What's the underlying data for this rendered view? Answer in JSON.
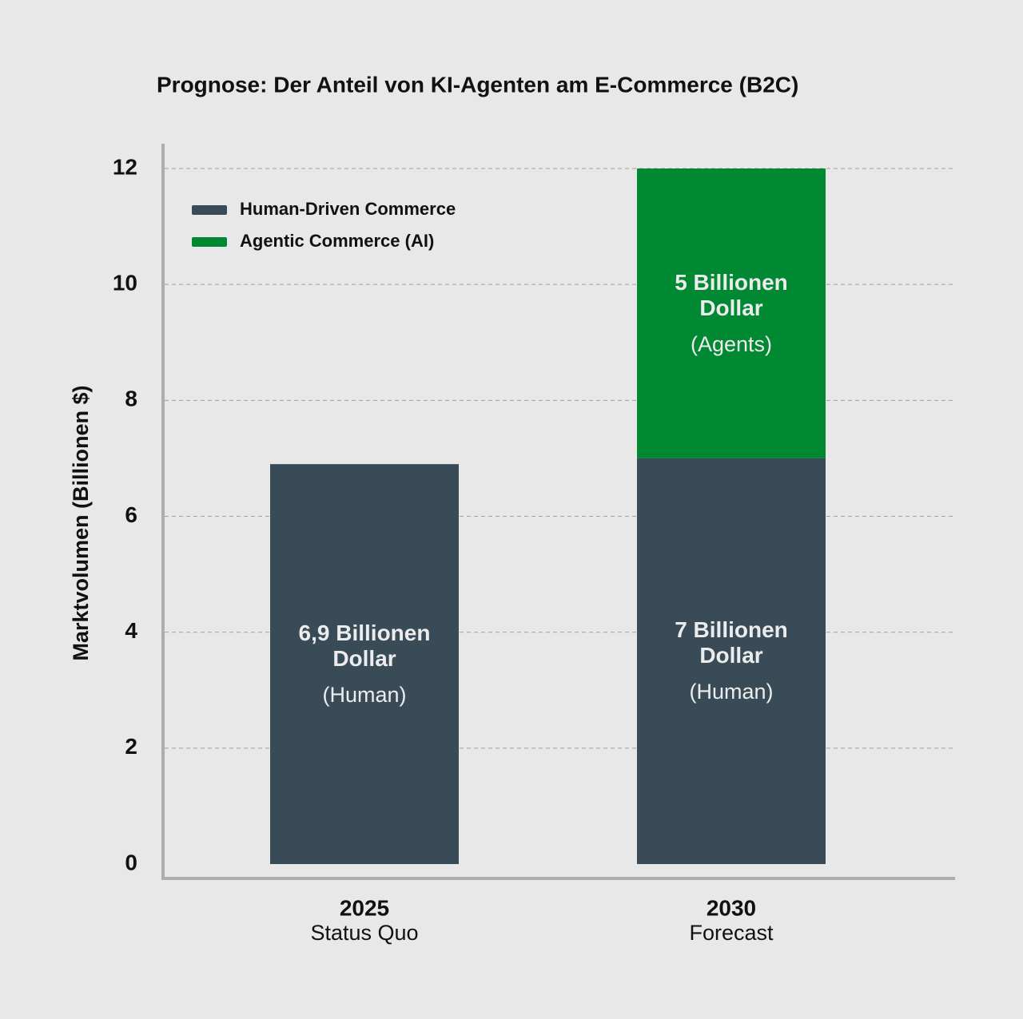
{
  "chart_data": {
    "type": "stacked-bar",
    "title": "Prognose: Der Anteil von KI-Agenten am E-Commerce (B2C)",
    "y_label": "Marktvolumen (Billionen $)",
    "categories": [
      "2025",
      "2030"
    ],
    "category_subtitles": [
      "Status Quo",
      "Forecast"
    ],
    "series": [
      {
        "name": "Human-Driven Commerce",
        "color": "#3a4b58",
        "values": [
          6.9,
          7
        ],
        "value_labels": [
          "6,9 Billionen Dollar",
          "7 Billionen Dollar"
        ],
        "value_notes": [
          "(Human)",
          "(Human)"
        ]
      },
      {
        "name": "Agentic Commerce (AI)",
        "color": "#008833",
        "values": [
          null,
          5
        ],
        "value_labels": [
          null,
          "5 Billionen Dollar"
        ],
        "value_notes": [
          null,
          "(Agents)"
        ]
      }
    ],
    "ylim": [
      0,
      12
    ],
    "yticks": [
      0,
      2,
      4,
      6,
      8,
      10,
      12
    ],
    "grid": true,
    "legend": "top-left"
  }
}
